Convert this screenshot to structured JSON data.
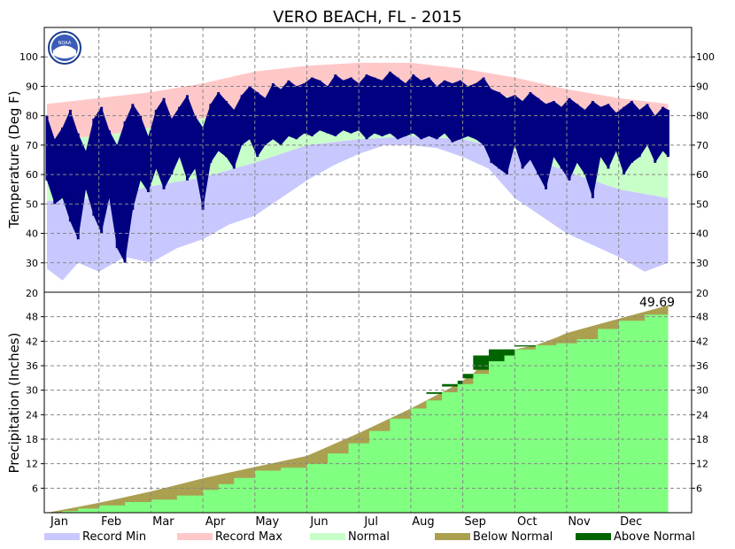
{
  "title": "VERO BEACH, FL - 2015",
  "logo_text": "NOAA",
  "colors": {
    "record_min": "#c8c8ff",
    "record_max": "#ffc8c8",
    "normal": "#c8ffc8",
    "observed": "#000080",
    "precip_observed": "#80ff80",
    "below_normal": "#aaa050",
    "above_normal": "#006400",
    "grid": "#888888"
  },
  "months": [
    "Jan",
    "Feb",
    "Mar",
    "Apr",
    "May",
    "Jun",
    "Jul",
    "Aug",
    "Sep",
    "Oct",
    "Nov",
    "Dec"
  ],
  "legend": [
    {
      "label": "Record Min",
      "color": "#c8c8ff"
    },
    {
      "label": "Record Max",
      "color": "#ffc8c8"
    },
    {
      "label": "Normal",
      "color": "#c8ffc8"
    },
    {
      "label": "Below Normal",
      "color": "#aaa050"
    },
    {
      "label": "Above Normal",
      "color": "#006400"
    }
  ],
  "chart_data": [
    {
      "type": "area",
      "panel": "temperature",
      "ylabel": "Temperature (Deg F)",
      "ylim": [
        20,
        110
      ],
      "yticks": [
        30,
        40,
        50,
        60,
        70,
        80,
        90,
        100
      ],
      "bottom_label": "20",
      "grid": true,
      "x_unit": "month",
      "series": [
        {
          "name": "Record Max",
          "x": [
            1,
            2,
            3,
            4,
            5,
            6,
            7,
            8,
            9,
            10,
            11,
            12,
            12.95
          ],
          "values": [
            84,
            86,
            88,
            91,
            95,
            97,
            98,
            98,
            96,
            93,
            89,
            86,
            84
          ]
        },
        {
          "name": "Normal",
          "x": [
            1,
            2,
            3,
            4,
            5,
            6,
            7,
            8,
            9,
            10,
            11,
            12,
            12.95
          ],
          "values": [
            72,
            73,
            76,
            79,
            83,
            88,
            90,
            90,
            89,
            86,
            81,
            76,
            73
          ]
        },
        {
          "name": "Normal",
          "x": [
            1,
            2,
            3,
            4,
            5,
            6,
            7,
            8,
            9,
            10,
            11,
            12,
            12.95
          ],
          "values": [
            51,
            52,
            56,
            59,
            64,
            70,
            72,
            73,
            72,
            68,
            61,
            55,
            52
          ]
        },
        {
          "name": "Record Min",
          "x": [
            1,
            1.3,
            1.6,
            2,
            2.5,
            3,
            3.5,
            4,
            4.5,
            5,
            5.5,
            6,
            6.5,
            7,
            7.5,
            8,
            8.5,
            9,
            9.5,
            10,
            10.5,
            11,
            11.5,
            12,
            12.5,
            12.95
          ],
          "values": [
            28,
            24,
            30,
            27,
            32,
            30,
            35,
            38,
            43,
            46,
            52,
            58,
            63,
            67,
            70,
            70,
            69,
            66,
            62,
            52,
            46,
            40,
            36,
            32,
            27,
            30
          ]
        },
        {
          "name": "observed",
          "x": [
            1,
            1.15,
            1.3,
            1.45,
            1.6,
            1.75,
            1.9,
            2.05,
            2.2,
            2.35,
            2.5,
            2.65,
            2.8,
            2.95,
            3.1,
            3.25,
            3.4,
            3.55,
            3.7,
            3.85,
            4,
            4.15,
            4.3,
            4.45,
            4.6,
            4.75,
            4.9,
            5.05,
            5.2,
            5.35,
            5.5,
            5.65,
            5.8,
            5.95,
            6.1,
            6.25,
            6.4,
            6.55,
            6.7,
            6.85,
            7,
            7.15,
            7.3,
            7.45,
            7.6,
            7.75,
            7.9,
            8.05,
            8.2,
            8.35,
            8.5,
            8.65,
            8.8,
            8.95,
            9.1,
            9.25,
            9.4,
            9.55,
            9.7,
            9.85,
            10,
            10.15,
            10.3,
            10.45,
            10.6,
            10.75,
            10.9,
            11.05,
            11.2,
            11.35,
            11.5,
            11.65,
            11.8,
            11.95,
            12.1,
            12.25,
            12.4,
            12.55,
            12.7,
            12.85,
            12.95
          ],
          "high": [
            80,
            72,
            76,
            82,
            74,
            68,
            79,
            83,
            75,
            70,
            78,
            84,
            80,
            73,
            82,
            86,
            79,
            83,
            87,
            80,
            76,
            84,
            88,
            85,
            82,
            87,
            90,
            88,
            86,
            91,
            89,
            92,
            90,
            91,
            93,
            92,
            90,
            94,
            92,
            93,
            91,
            94,
            93,
            92,
            95,
            93,
            91,
            94,
            92,
            93,
            90,
            92,
            91,
            92,
            90,
            91,
            93,
            89,
            88,
            86,
            87,
            85,
            88,
            86,
            84,
            85,
            83,
            86,
            84,
            82,
            85,
            83,
            84,
            81,
            83,
            85,
            82,
            84,
            80,
            83,
            82
          ],
          "low": [
            58,
            50,
            52,
            44,
            38,
            55,
            46,
            40,
            52,
            35,
            30,
            48,
            58,
            54,
            62,
            55,
            60,
            66,
            58,
            62,
            48,
            64,
            68,
            66,
            62,
            70,
            72,
            66,
            70,
            72,
            70,
            73,
            72,
            74,
            73,
            75,
            74,
            73,
            75,
            74,
            75,
            72,
            74,
            73,
            74,
            72,
            73,
            74,
            72,
            73,
            72,
            74,
            71,
            72,
            73,
            72,
            70,
            64,
            62,
            60,
            70,
            62,
            65,
            60,
            55,
            66,
            62,
            58,
            64,
            60,
            52,
            66,
            62,
            68,
            60,
            64,
            66,
            70,
            64,
            68,
            66
          ]
        }
      ]
    },
    {
      "type": "area",
      "panel": "precipitation",
      "ylabel": "Precipitation (Inches)",
      "ylim": [
        0,
        54
      ],
      "yticks": [
        6,
        12,
        18,
        24,
        30,
        36,
        42,
        48
      ],
      "grid": true,
      "x_unit": "month",
      "annotation": "49.69",
      "series": [
        {
          "name": "Normal",
          "x": [
            1,
            2,
            3,
            4,
            5,
            6,
            7,
            8,
            9,
            10,
            11,
            12,
            12.95
          ],
          "values": [
            0,
            2.4,
            5.2,
            8.4,
            11.2,
            13.9,
            19.5,
            25.5,
            31.5,
            38.5,
            44.0,
            47.5,
            50.8
          ]
        },
        {
          "name": "observed",
          "x": [
            1,
            1.3,
            1.6,
            2,
            2.5,
            3,
            3.5,
            4,
            4.3,
            4.6,
            5,
            5.5,
            6,
            6.4,
            6.8,
            7.2,
            7.6,
            8,
            8.3,
            8.6,
            8.9,
            9.2,
            9.5,
            9.8,
            10,
            10.4,
            10.8,
            11.2,
            11.6,
            12,
            12.5,
            12.95
          ],
          "values": [
            0,
            0.4,
            1.0,
            1.8,
            2.6,
            3.2,
            4.2,
            5.6,
            7.0,
            8.5,
            10.3,
            11.0,
            12.0,
            14.5,
            17.0,
            20.0,
            23.0,
            25.5,
            27.5,
            29.5,
            31.5,
            34.0,
            38.5,
            40.0,
            40.0,
            41.0,
            41.5,
            42.5,
            45.0,
            47.0,
            48.5,
            49.69
          ]
        }
      ]
    }
  ]
}
